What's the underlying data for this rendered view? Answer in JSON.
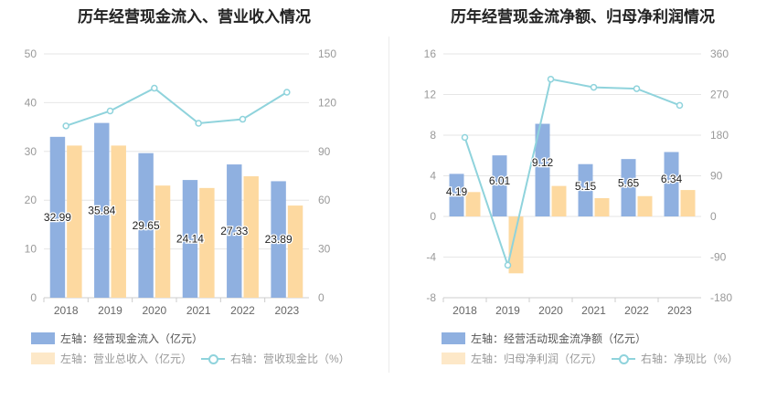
{
  "chart_data": [
    {
      "type": "bar",
      "title": "历年经营现金流入、营业收入情况",
      "categories": [
        "2018",
        "2019",
        "2020",
        "2021",
        "2022",
        "2023"
      ],
      "left_axis": {
        "ylim": [
          0,
          50
        ],
        "ticks": [
          "0",
          "10",
          "20",
          "30",
          "40",
          "50"
        ]
      },
      "right_axis": {
        "ylim": [
          0,
          150
        ],
        "ticks": [
          "0",
          "30",
          "60",
          "90",
          "120",
          "150"
        ]
      },
      "series": [
        {
          "name": "左轴：经营现金流入（亿元）",
          "type": "bar",
          "axis": "left",
          "color": "#8fb0e0",
          "values": [
            32.99,
            35.84,
            29.65,
            24.14,
            27.33,
            23.89
          ],
          "labels": [
            "32.99",
            "35.84",
            "29.65",
            "24.14",
            "27.33",
            "23.89"
          ]
        },
        {
          "name": "左轴：营业总收入（亿元）",
          "type": "bar",
          "axis": "left",
          "color": "#fdd9a0",
          "values": [
            31.2,
            31.2,
            23.0,
            22.5,
            24.9,
            18.9
          ]
        },
        {
          "name": "右轴：营收现金比（%）",
          "type": "line",
          "axis": "right",
          "color": "#8fd3dc",
          "values": [
            105.7,
            114.9,
            128.9,
            107.3,
            109.8,
            126.4
          ]
        }
      ]
    },
    {
      "type": "bar",
      "title": "历年经营现金流净额、归母净利润情况",
      "categories": [
        "2018",
        "2019",
        "2020",
        "2021",
        "2022",
        "2023"
      ],
      "left_axis": {
        "ylim": [
          -8,
          16
        ],
        "ticks": [
          "-8",
          "-4",
          "0",
          "4",
          "8",
          "12",
          "16"
        ]
      },
      "right_axis": {
        "ylim": [
          -180,
          360
        ],
        "ticks": [
          "-180",
          "-90",
          "0",
          "90",
          "180",
          "270",
          "360"
        ]
      },
      "series": [
        {
          "name": "左轴：经营活动现金流净额（亿元）",
          "type": "bar",
          "axis": "left",
          "color": "#8fb0e0",
          "values": [
            4.19,
            6.01,
            9.12,
            5.15,
            5.65,
            6.34
          ],
          "labels": [
            "4.19",
            "6.01",
            "9.12",
            "5.15",
            "5.65",
            "6.34"
          ]
        },
        {
          "name": "左轴：归母净利润（亿元）",
          "type": "bar",
          "axis": "left",
          "color": "#fdd9a0",
          "values": [
            2.4,
            -5.6,
            3.0,
            1.8,
            2.0,
            2.6
          ]
        },
        {
          "name": "右轴：净现比（%）",
          "type": "line",
          "axis": "right",
          "color": "#8fd3dc",
          "values": [
            175,
            -108,
            304,
            286,
            283,
            246
          ]
        }
      ]
    }
  ]
}
